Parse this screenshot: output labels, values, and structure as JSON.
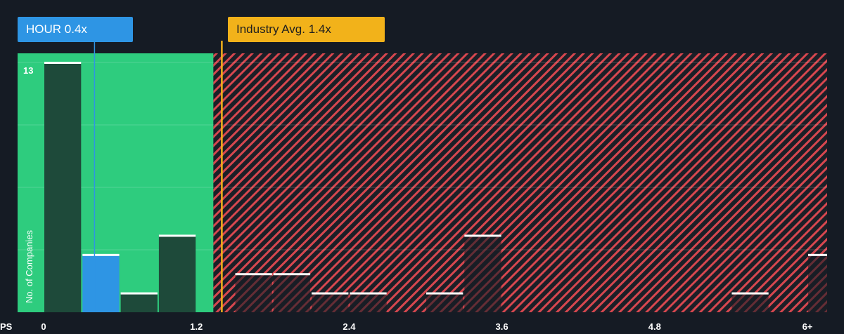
{
  "colors": {
    "background": "#151b24",
    "below_avg_zone": "#2ecc7e",
    "above_avg_zone_hatch": "#d7474f",
    "company_bar": "#2e95e4",
    "industry_marker": "#f2b21a",
    "bar_dark": "#1e4a3a",
    "bar_cap": "#ffffff"
  },
  "callouts": {
    "company": "HOUR 0.4x",
    "industry": "Industry Avg. 1.4x"
  },
  "chart_data": {
    "type": "bar",
    "title": "",
    "xlabel": "PS",
    "ylabel": "No. of Companies",
    "x_ticks": [
      "0",
      "1.2",
      "2.4",
      "3.6",
      "4.8",
      "6+"
    ],
    "x_tick_values": [
      0,
      1.2,
      2.4,
      3.6,
      4.8,
      6
    ],
    "y_tick_labels": [
      "13"
    ],
    "ylim": [
      0,
      13
    ],
    "xlim": [
      -0.2,
      6.2
    ],
    "bin_width": 0.3,
    "company_value": 0.4,
    "industry_avg": 1.4,
    "bins": [
      {
        "x": 0.0,
        "count": 13,
        "highlight": false
      },
      {
        "x": 0.3,
        "count": 3,
        "highlight": true
      },
      {
        "x": 0.6,
        "count": 1,
        "highlight": false
      },
      {
        "x": 0.9,
        "count": 4,
        "highlight": false
      },
      {
        "x": 1.5,
        "count": 2,
        "highlight": false
      },
      {
        "x": 1.8,
        "count": 2,
        "highlight": false
      },
      {
        "x": 2.1,
        "count": 1,
        "highlight": false
      },
      {
        "x": 2.4,
        "count": 1,
        "highlight": false
      },
      {
        "x": 3.0,
        "count": 1,
        "highlight": false
      },
      {
        "x": 3.3,
        "count": 4,
        "highlight": false
      },
      {
        "x": 5.4,
        "count": 1,
        "highlight": false
      },
      {
        "x": 6.0,
        "count": 3,
        "highlight": false
      }
    ],
    "grid": true
  }
}
